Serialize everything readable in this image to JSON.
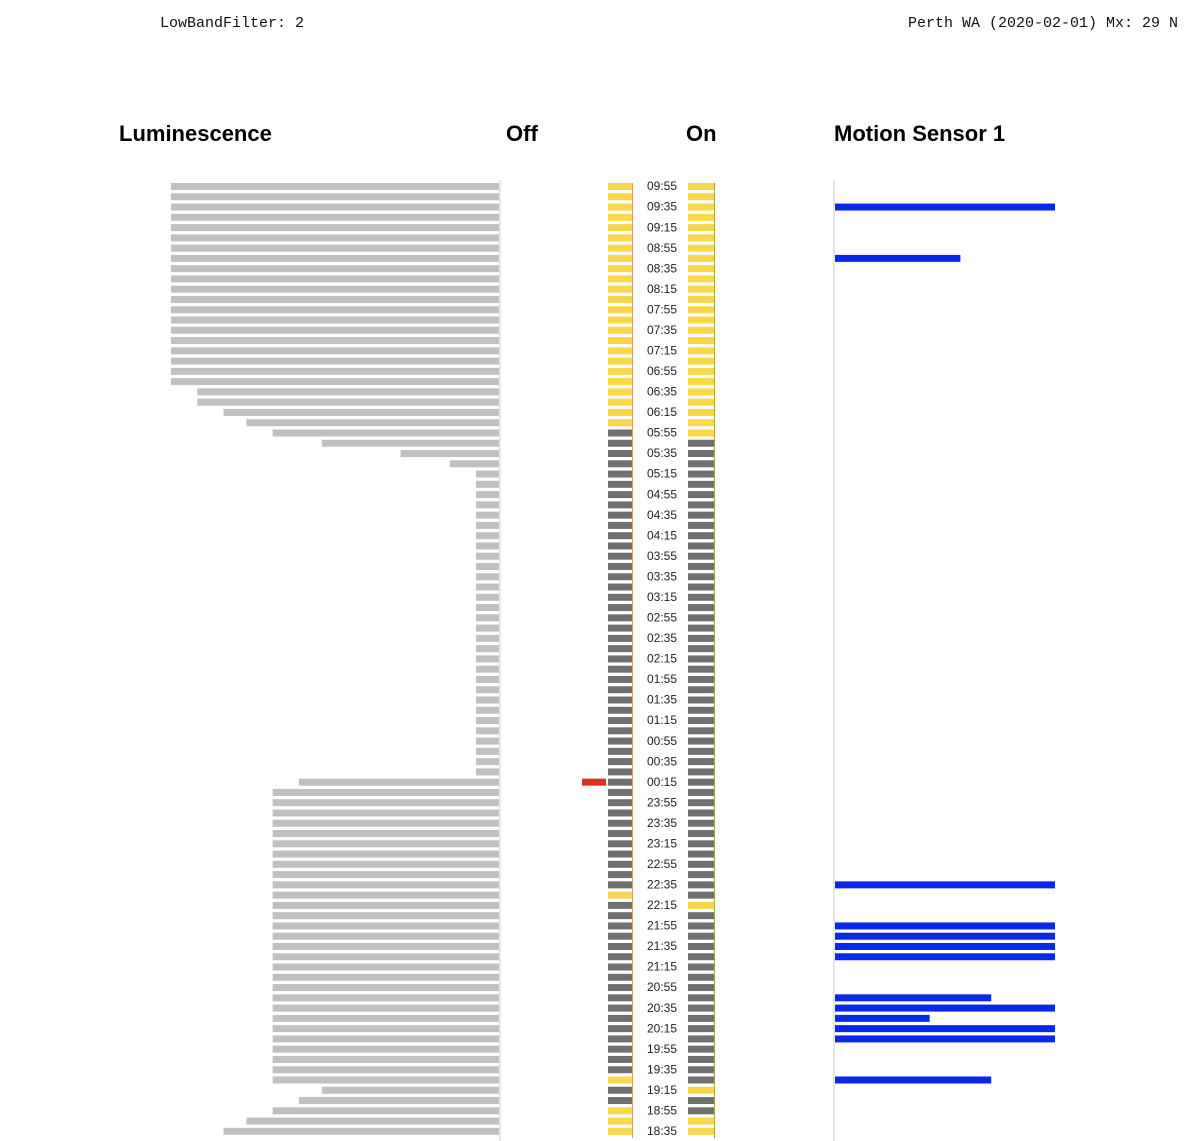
{
  "header": {
    "filter": "LowBandFilter: 2",
    "location": "Perth WA (2020-02-01) Mx: 29 N"
  },
  "times": [
    "09:55",
    null,
    "09:35",
    null,
    "09:15",
    null,
    "08:55",
    null,
    "08:35",
    null,
    "08:15",
    null,
    "07:55",
    null,
    "07:35",
    null,
    "07:15",
    null,
    "06:55",
    null,
    "06:35",
    null,
    "06:15",
    null,
    "05:55",
    null,
    "05:35",
    null,
    "05:15",
    null,
    "04:55",
    null,
    "04:35",
    null,
    "04:15",
    null,
    "03:55",
    null,
    "03:35",
    null,
    "03:15",
    null,
    "02:55",
    null,
    "02:35",
    null,
    "02:15",
    null,
    "01:55",
    null,
    "01:35",
    null,
    "01:15",
    null,
    "00:55",
    null,
    "00:35",
    null,
    "00:15",
    null,
    "23:55",
    null,
    "23:35",
    null,
    "23:15",
    null,
    "22:55",
    null,
    "22:35",
    null,
    "22:15",
    null,
    "21:55",
    null,
    "21:35",
    null,
    "21:15",
    null,
    "20:55",
    null,
    "20:35",
    null,
    "20:15",
    null,
    "19:55",
    null,
    "19:35",
    null,
    "19:15",
    null,
    "18:55",
    null,
    "18:35"
  ],
  "luminescence": {
    "title": "Luminescence",
    "color": "#c0c0c0",
    "xlim": [
      0,
      100
    ],
    "values": [
      100,
      100,
      100,
      100,
      100,
      100,
      100,
      100,
      100,
      100,
      100,
      100,
      100,
      100,
      100,
      100,
      100,
      100,
      100,
      100,
      92,
      92,
      84,
      77,
      69,
      54,
      30,
      15,
      7,
      7,
      7,
      7,
      7,
      7,
      7,
      7,
      7,
      7,
      7,
      7,
      7,
      7,
      7,
      7,
      7,
      7,
      7,
      7,
      7,
      7,
      7,
      7,
      7,
      7,
      7,
      7,
      7,
      7,
      61,
      69,
      69,
      69,
      69,
      69,
      69,
      69,
      69,
      69,
      69,
      69,
      69,
      69,
      69,
      69,
      69,
      69,
      69,
      69,
      69,
      69,
      69,
      69,
      69,
      69,
      69,
      69,
      69,
      69,
      54,
      61,
      69,
      77,
      84
    ]
  },
  "off": {
    "title": "Off",
    "on_color": "#f8d84a",
    "off_color": "#707070",
    "alert_color": "#e03020",
    "values": [
      1,
      1,
      1,
      1,
      1,
      1,
      1,
      1,
      1,
      1,
      1,
      1,
      1,
      1,
      1,
      1,
      1,
      1,
      1,
      1,
      1,
      1,
      1,
      1,
      0,
      0,
      0,
      0,
      0,
      0,
      0,
      0,
      0,
      0,
      0,
      0,
      0,
      0,
      0,
      0,
      0,
      0,
      0,
      0,
      0,
      0,
      0,
      0,
      0,
      0,
      0,
      0,
      0,
      0,
      0,
      0,
      0,
      0,
      0,
      0,
      0,
      0,
      0,
      0,
      0,
      0,
      0,
      0,
      0,
      1,
      0,
      0,
      0,
      0,
      0,
      0,
      0,
      0,
      0,
      0,
      0,
      0,
      0,
      0,
      0,
      0,
      0,
      1,
      0,
      0,
      1,
      1,
      1
    ],
    "alerts": [
      0,
      0,
      0,
      0,
      0,
      0,
      0,
      0,
      0,
      0,
      0,
      0,
      0,
      0,
      0,
      0,
      0,
      0,
      0,
      0,
      0,
      0,
      0,
      0,
      0,
      0,
      0,
      0,
      0,
      0,
      0,
      0,
      0,
      0,
      0,
      0,
      0,
      0,
      0,
      0,
      0,
      0,
      0,
      0,
      0,
      0,
      0,
      0,
      0,
      0,
      0,
      0,
      0,
      0,
      0,
      0,
      0,
      0,
      1,
      0,
      0,
      0,
      0,
      0,
      0,
      0,
      0,
      0,
      0,
      0,
      0,
      0,
      0,
      0,
      0,
      0,
      0,
      0,
      0,
      0,
      0,
      0,
      0,
      0,
      0,
      0,
      0,
      0,
      0,
      0,
      0,
      0,
      0
    ]
  },
  "on": {
    "title": "On",
    "on_color": "#f8d84a",
    "off_color": "#707070",
    "values": [
      1,
      1,
      1,
      1,
      1,
      1,
      1,
      1,
      1,
      1,
      1,
      1,
      1,
      1,
      1,
      1,
      1,
      1,
      1,
      1,
      1,
      1,
      1,
      1,
      1,
      0,
      0,
      0,
      0,
      0,
      0,
      0,
      0,
      0,
      0,
      0,
      0,
      0,
      0,
      0,
      0,
      0,
      0,
      0,
      0,
      0,
      0,
      0,
      0,
      0,
      0,
      0,
      0,
      0,
      0,
      0,
      0,
      0,
      0,
      0,
      0,
      0,
      0,
      0,
      0,
      0,
      0,
      0,
      0,
      0,
      1,
      0,
      0,
      0,
      0,
      0,
      0,
      0,
      0,
      0,
      0,
      0,
      0,
      0,
      0,
      0,
      0,
      0,
      1,
      0,
      0,
      1,
      1
    ]
  },
  "motion": {
    "title": "Motion Sensor 1",
    "color": "#0a28e8",
    "xlim": [
      0,
      100
    ],
    "values": [
      0,
      0,
      100,
      0,
      0,
      0,
      0,
      57,
      0,
      0,
      0,
      0,
      0,
      0,
      0,
      0,
      0,
      0,
      0,
      0,
      0,
      0,
      0,
      0,
      0,
      0,
      0,
      0,
      0,
      0,
      0,
      0,
      0,
      0,
      0,
      0,
      0,
      0,
      0,
      0,
      0,
      0,
      0,
      0,
      0,
      0,
      0,
      0,
      0,
      0,
      0,
      0,
      0,
      0,
      0,
      0,
      0,
      0,
      0,
      0,
      0,
      0,
      0,
      0,
      0,
      0,
      0,
      0,
      100,
      0,
      0,
      0,
      100,
      100,
      100,
      100,
      0,
      0,
      0,
      71,
      100,
      43,
      100,
      100,
      0,
      0,
      0,
      71,
      0,
      0,
      0,
      0,
      0
    ]
  }
}
